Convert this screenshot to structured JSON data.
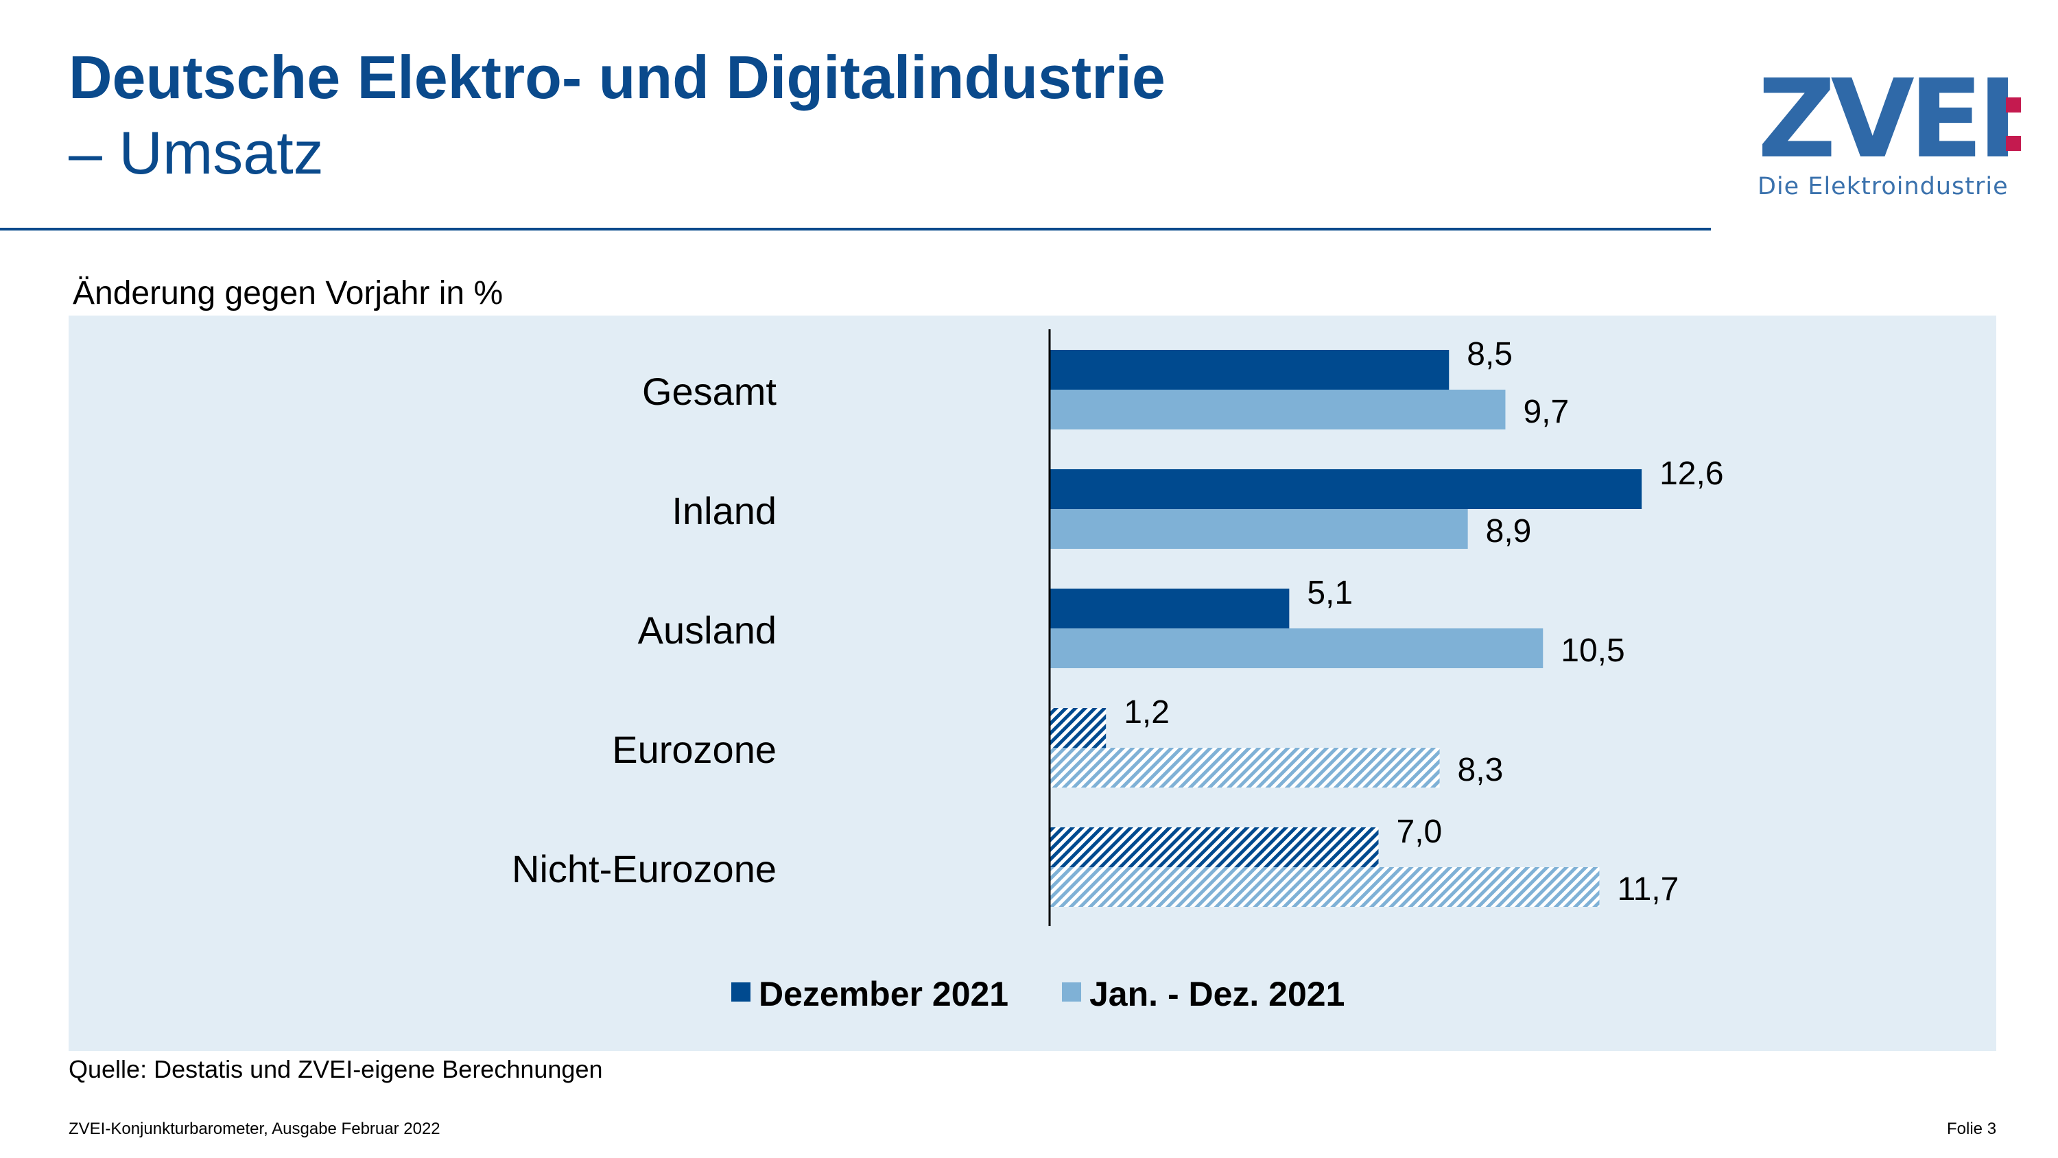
{
  "header": {
    "title_line1": "Deutsche Elektro- und Digitalindustrie",
    "title_line2": "– Umsatz"
  },
  "logo": {
    "text": "ZVEI",
    "tagline": "Die Elektroindustrie",
    "colors": {
      "letters": "#2f69a8",
      "dots": "#c41a4f"
    }
  },
  "subtitle": "Änderung gegen Vorjahr in %",
  "chart_data": {
    "type": "bar",
    "orientation": "horizontal",
    "categories": [
      "Gesamt",
      "Inland",
      "Ausland",
      "Eurozone",
      "Nicht-Eurozone"
    ],
    "series": [
      {
        "name": "Dezember 2021",
        "color": "#004a8f",
        "values": [
          8.5,
          12.6,
          5.1,
          1.2,
          7.0
        ],
        "labels": [
          "8,5",
          "12,6",
          "5,1",
          "1,2",
          "7,0"
        ],
        "hatched": [
          false,
          false,
          false,
          true,
          true
        ]
      },
      {
        "name": "Jan. - Dez. 2021",
        "color": "#7fb1d6",
        "values": [
          9.7,
          8.9,
          10.5,
          8.3,
          11.7
        ],
        "labels": [
          "9,7",
          "8,9",
          "10,5",
          "8,3",
          "11,7"
        ],
        "hatched": [
          false,
          false,
          false,
          true,
          true
        ]
      }
    ],
    "xlim": [
      0,
      20
    ],
    "grid": false,
    "legend_position": "bottom"
  },
  "footer": {
    "source": "Quelle: Destatis und ZVEI-eigene Berechnungen",
    "left": "ZVEI-Konjunkturbarometer, Ausgabe Februar 2022",
    "right": "Folie 3"
  }
}
